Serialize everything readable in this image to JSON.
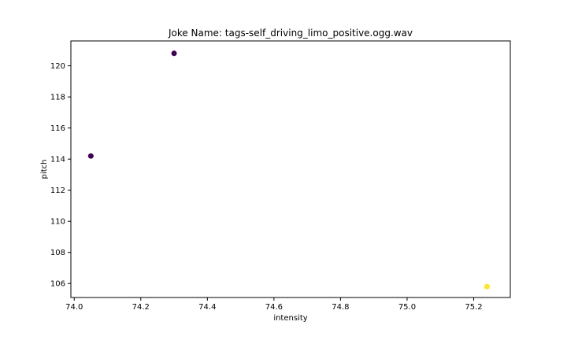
{
  "chart_data": {
    "type": "scatter",
    "title": "Joke Name: tags-self_driving_limo_positive.ogg.wav",
    "xlabel": "intensity",
    "ylabel": "pitch",
    "xlim": [
      73.99,
      75.31
    ],
    "ylim": [
      105.1,
      121.6
    ],
    "xticks": [
      74.0,
      74.2,
      74.4,
      74.6,
      74.8,
      75.0,
      75.2
    ],
    "xtick_labels": [
      "74.0",
      "74.2",
      "74.4",
      "74.6",
      "74.8",
      "75.0",
      "75.2"
    ],
    "yticks": [
      106,
      108,
      110,
      112,
      114,
      116,
      118,
      120
    ],
    "ytick_labels": [
      "106",
      "108",
      "110",
      "112",
      "114",
      "116",
      "118",
      "120"
    ],
    "grid": false,
    "points": [
      {
        "x": 74.05,
        "y": 114.2,
        "color": "#440154"
      },
      {
        "x": 74.3,
        "y": 120.8,
        "color": "#440154"
      },
      {
        "x": 75.24,
        "y": 105.8,
        "color": "#fde725"
      }
    ]
  }
}
